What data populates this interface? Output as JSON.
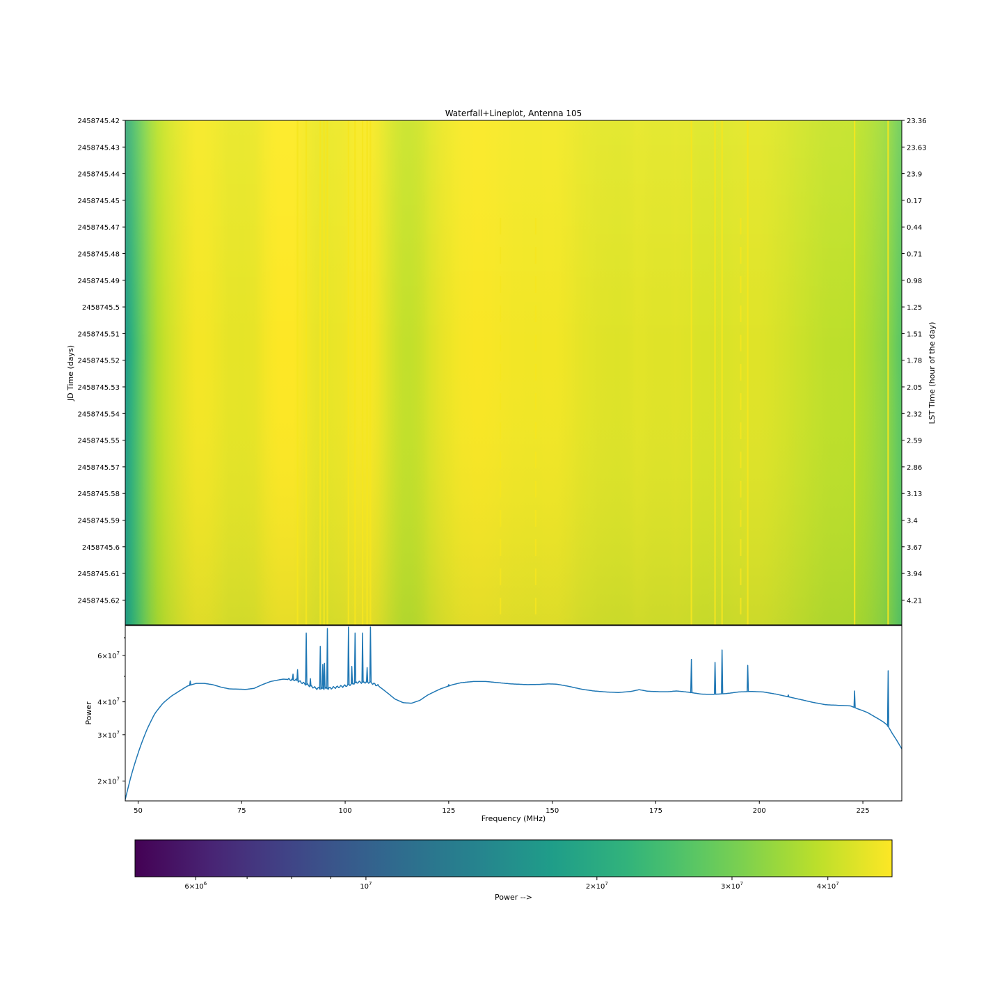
{
  "chart_data": [
    {
      "type": "heatmap",
      "title": "Waterfall+Lineplot, Antenna 105",
      "ylabel_left": "JD Time (days)",
      "ylabel_right": "LST Time (hour of the day)",
      "x_range_mhz": [
        46.9,
        234.4
      ],
      "jd_range": [
        2458745.42,
        2458745.6321
      ],
      "jd_ticks": [
        "2458745.42",
        "2458745.43",
        "2458745.44",
        "2458745.45",
        "2458745.47",
        "2458745.48",
        "2458745.49",
        "2458745.5",
        "2458745.51",
        "2458745.52",
        "2458745.53",
        "2458745.54",
        "2458745.55",
        "2458745.57",
        "2458745.58",
        "2458745.59",
        "2458745.6",
        "2458745.61",
        "2458745.62"
      ],
      "lst_ticks": [
        "23.36",
        "23.63",
        "23.9",
        "0.17",
        "0.44",
        "0.71",
        "0.98",
        "1.25",
        "1.51",
        "1.78",
        "2.05",
        "2.32",
        "2.59",
        "2.86",
        "3.13",
        "3.4",
        "3.67",
        "3.94",
        "4.21"
      ],
      "rfi_lines_mhz": [
        88.5,
        90.6,
        94.0,
        94.9,
        95.7,
        100.8,
        102.4,
        104.2,
        105.3,
        106.1,
        183.6,
        189.3,
        191.0,
        197.2,
        223.0,
        231.1
      ],
      "intermittent_rfi_mhz": [
        137.5,
        146.0,
        195.5
      ]
    },
    {
      "type": "line",
      "xlabel": "Frequency (MHz)",
      "ylabel": "Power",
      "yscale": "log",
      "ylim": [
        16800000,
        78000000
      ],
      "xlim": [
        46.9,
        234.4
      ],
      "xticks": [
        "50",
        "75",
        "100",
        "125",
        "150",
        "175",
        "200",
        "225"
      ],
      "yticks": [
        {
          "value": 20000000,
          "base": "2",
          "exp": "7"
        },
        {
          "value": 30000000,
          "base": "3",
          "exp": "7"
        },
        {
          "value": 40000000,
          "base": "4",
          "exp": "7"
        },
        {
          "value": 60000000,
          "base": "6",
          "exp": "7"
        }
      ],
      "baseline": [
        [
          46.9,
          17000000
        ],
        [
          48,
          20000000
        ],
        [
          50,
          25500000
        ],
        [
          52,
          31000000
        ],
        [
          54,
          36000000
        ],
        [
          56,
          39500000
        ],
        [
          58,
          42000000
        ],
        [
          60,
          44000000
        ],
        [
          62,
          46000000
        ],
        [
          64,
          47000000
        ],
        [
          66,
          47000000
        ],
        [
          68,
          46500000
        ],
        [
          70,
          45500000
        ],
        [
          72,
          44800000
        ],
        [
          74,
          44700000
        ],
        [
          76,
          44600000
        ],
        [
          78,
          45000000
        ],
        [
          80,
          46500000
        ],
        [
          82,
          47800000
        ],
        [
          85,
          48800000
        ],
        [
          88,
          48500000
        ],
        [
          90,
          47000000
        ],
        [
          93,
          45000000
        ],
        [
          96,
          45000000
        ],
        [
          100,
          46000000
        ],
        [
          103,
          47500000
        ],
        [
          106,
          47500000
        ],
        [
          108,
          46000000
        ],
        [
          110,
          43500000
        ],
        [
          112,
          41000000
        ],
        [
          114,
          39700000
        ],
        [
          116,
          39500000
        ],
        [
          118,
          40500000
        ],
        [
          120,
          42500000
        ],
        [
          123,
          44800000
        ],
        [
          126,
          46500000
        ],
        [
          128,
          47300000
        ],
        [
          131,
          47800000
        ],
        [
          134,
          47800000
        ],
        [
          137,
          47300000
        ],
        [
          140,
          46800000
        ],
        [
          144,
          46500000
        ],
        [
          147,
          46600000
        ],
        [
          149,
          46800000
        ],
        [
          151,
          46700000
        ],
        [
          154,
          45800000
        ],
        [
          157,
          44700000
        ],
        [
          160,
          44000000
        ],
        [
          163,
          43600000
        ],
        [
          166,
          43400000
        ],
        [
          169,
          43800000
        ],
        [
          171,
          44500000
        ],
        [
          173,
          43900000
        ],
        [
          176,
          43700000
        ],
        [
          178,
          43700000
        ],
        [
          180,
          44000000
        ],
        [
          183,
          43500000
        ],
        [
          186,
          42800000
        ],
        [
          189,
          42700000
        ],
        [
          192,
          43000000
        ],
        [
          195,
          43600000
        ],
        [
          198,
          43800000
        ],
        [
          201,
          43600000
        ],
        [
          204,
          42800000
        ],
        [
          207,
          41800000
        ],
        [
          210,
          40800000
        ],
        [
          213,
          39800000
        ],
        [
          216,
          39000000
        ],
        [
          219,
          38800000
        ],
        [
          222,
          38600000
        ],
        [
          224,
          37500000
        ],
        [
          226,
          36500000
        ],
        [
          228,
          35000000
        ],
        [
          230,
          33500000
        ],
        [
          231,
          32500000
        ],
        [
          232,
          30500000
        ],
        [
          234.4,
          26500000
        ]
      ],
      "spikes": [
        {
          "mhz": 62.6,
          "peak": 48000000
        },
        {
          "mhz": 87.4,
          "peak": 51000000
        },
        {
          "mhz": 88.5,
          "peak": 53000000
        },
        {
          "mhz": 90.6,
          "peak": 73000000
        },
        {
          "mhz": 91.6,
          "peak": 49000000
        },
        {
          "mhz": 94.0,
          "peak": 65000000
        },
        {
          "mhz": 94.6,
          "peak": 55500000
        },
        {
          "mhz": 95.0,
          "peak": 56000000
        },
        {
          "mhz": 95.7,
          "peak": 76000000
        },
        {
          "mhz": 100.8,
          "peak": 77000000
        },
        {
          "mhz": 101.6,
          "peak": 54500000
        },
        {
          "mhz": 102.4,
          "peak": 73000000
        },
        {
          "mhz": 104.2,
          "peak": 73000000
        },
        {
          "mhz": 105.3,
          "peak": 54000000
        },
        {
          "mhz": 106.1,
          "peak": 77000000
        },
        {
          "mhz": 125.0,
          "peak": 46500000
        },
        {
          "mhz": 183.6,
          "peak": 58000000
        },
        {
          "mhz": 189.3,
          "peak": 56500000
        },
        {
          "mhz": 191.0,
          "peak": 63000000
        },
        {
          "mhz": 197.2,
          "peak": 55000000
        },
        {
          "mhz": 207.0,
          "peak": 42500000
        },
        {
          "mhz": 223.0,
          "peak": 44000000
        },
        {
          "mhz": 231.1,
          "peak": 52500000
        }
      ]
    },
    {
      "type": "colorbar",
      "label": "Power -->",
      "scale": "log",
      "range": [
        5000000,
        48500000
      ],
      "ticks": [
        {
          "value": 6000000,
          "base": "6",
          "exp": "6"
        },
        {
          "value": 10000000,
          "base": "",
          "exp": "7"
        },
        {
          "value": 20000000,
          "base": "2",
          "exp": "7"
        },
        {
          "value": 30000000,
          "base": "3",
          "exp": "7"
        },
        {
          "value": 40000000,
          "base": "4",
          "exp": "7"
        }
      ],
      "colormap": "viridis"
    }
  ]
}
